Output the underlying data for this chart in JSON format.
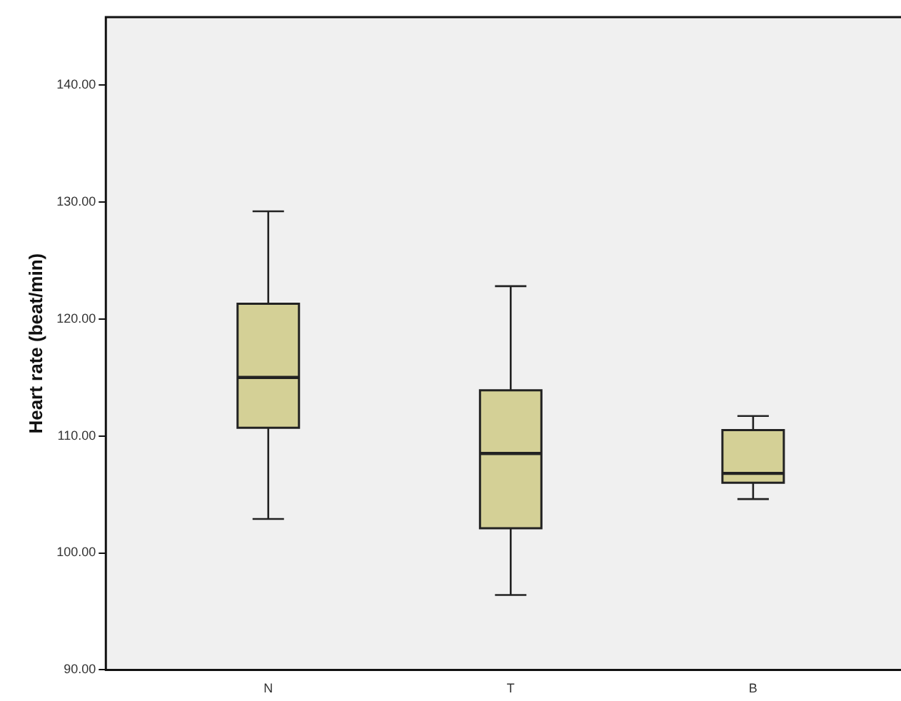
{
  "chart_data": {
    "type": "box",
    "ylabel": "Heart rate (beat/min)",
    "categories": [
      "N",
      "T",
      "B"
    ],
    "color": "#d4d096",
    "boxes": [
      {
        "low": 102.9,
        "q1": 110.7,
        "median": 115.0,
        "q3": 121.3,
        "high": 129.2
      },
      {
        "low": 96.4,
        "q1": 102.1,
        "median": 108.5,
        "q3": 113.9,
        "high": 122.8
      },
      {
        "low": 104.6,
        "q1": 106.0,
        "median": 106.8,
        "q3": 110.5,
        "high": 111.7
      }
    ],
    "ylim": [
      90,
      145.8
    ],
    "yticks": [
      {
        "value": 90,
        "label": "90.00"
      },
      {
        "value": 100,
        "label": "100.00"
      },
      {
        "value": 110,
        "label": "110.00"
      },
      {
        "value": 120,
        "label": "120.00"
      },
      {
        "value": 130,
        "label": "130.00"
      },
      {
        "value": 140,
        "label": "140.00"
      }
    ],
    "grid": false,
    "legend": false
  }
}
